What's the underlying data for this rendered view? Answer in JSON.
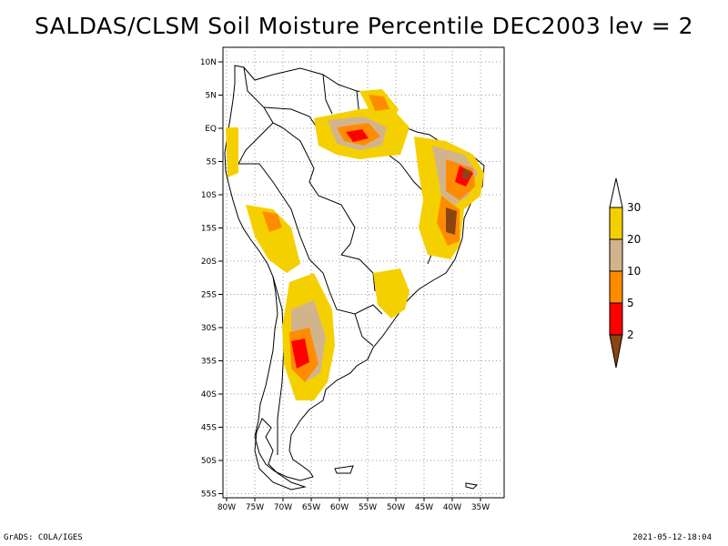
{
  "title": "SALDAS/CLSM Soil Moisture Percentile DEC2003 lev = 2",
  "map": {
    "lat_labels": [
      "10N",
      "5N",
      "EQ",
      "5S",
      "10S",
      "15S",
      "20S",
      "25S",
      "30S",
      "35S",
      "40S",
      "45S",
      "50S",
      "55S"
    ],
    "lon_labels": [
      "80W",
      "75W",
      "70W",
      "65W",
      "60W",
      "55W",
      "50W",
      "45W",
      "40W",
      "35W"
    ],
    "grid": true
  },
  "colorbar": {
    "levels": [
      "30",
      "20",
      "10",
      "5",
      "2"
    ],
    "colors": [
      "#ffffff",
      "#f5d000",
      "#d2b48c",
      "#ff8c00",
      "#ff0000",
      "#8b4513"
    ]
  },
  "footer": {
    "left": "GrADS: COLA/IGES",
    "right": "2021-05-12-18:04"
  }
}
